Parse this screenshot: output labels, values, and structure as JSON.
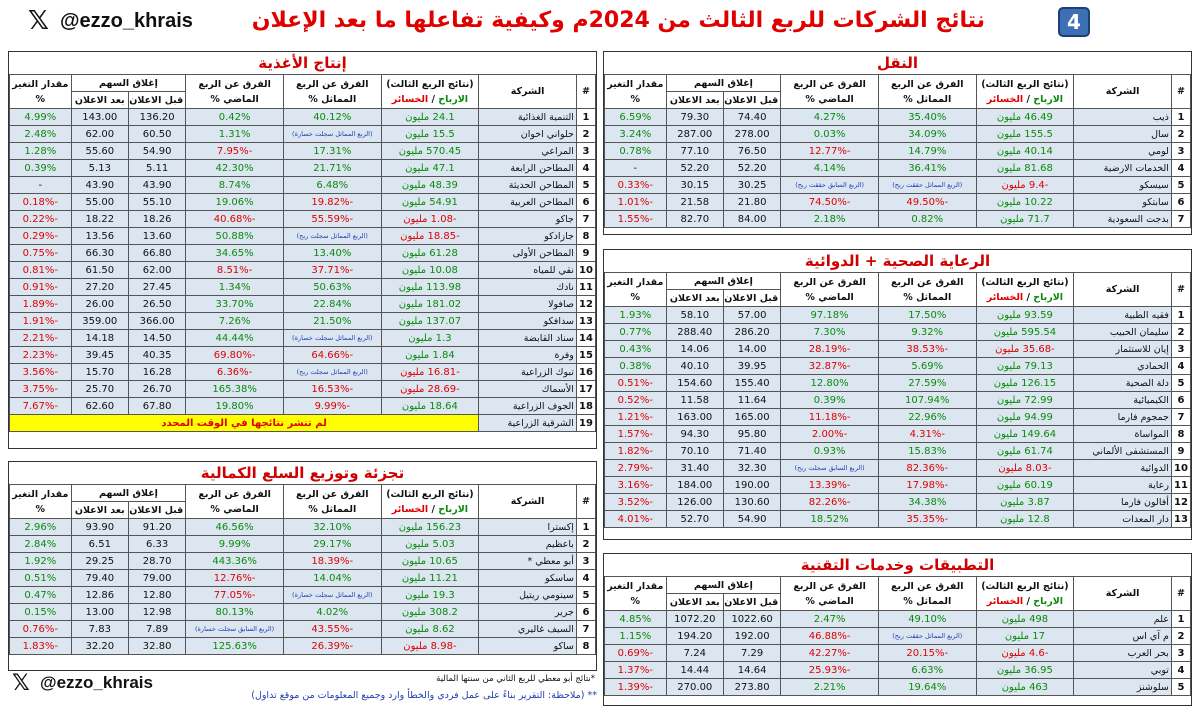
{
  "header": {
    "title": "نتائج الشركات للربع الثالث من 2024م وكيفية تفاعلها ما بعد الإعلان",
    "badge": "4",
    "handle": "@ezzo_khrais",
    "x_logo": "𝕏"
  },
  "columns": {
    "num": "#",
    "company": "الشركة",
    "q3_line1": "(نتائج الربع الثالث)",
    "q3_profit": "الارباح",
    "q3_sep": " / ",
    "q3_loss": "الخسائر",
    "diff_same": "الفرق عن الربع المماثل %",
    "diff_prev": "الفرق عن الربع الماضي %",
    "close_top": "إغلاق السهم",
    "close_before": "قبل الاعلان",
    "close_after": "بعد الاعلان",
    "change": "مقدار التغير %"
  },
  "food": {
    "title": "إنتاج الأغذية",
    "rows": [
      {
        "n": "1",
        "c": "التنمية الغذائية",
        "q": "24.1 مليون",
        "qc": "g",
        "s": "40.12%",
        "sc": "g",
        "p": "0.42%",
        "pc": "g",
        "bf": "136.20",
        "af": "143.00",
        "ch": "4.99%",
        "cc": "g"
      },
      {
        "n": "2",
        "c": "حلواني اخوان",
        "q": "15.5 مليون",
        "qc": "g",
        "s": "(الربع المماثل سجلت خسارة)",
        "sc": "sm",
        "p": "1.31%",
        "pc": "g",
        "bf": "60.50",
        "af": "62.00",
        "ch": "2.48%",
        "cc": "g"
      },
      {
        "n": "3",
        "c": "المراعي",
        "q": "570.45 مليون",
        "qc": "g",
        "s": "17.31%",
        "sc": "g",
        "p": "-7.95%",
        "pc": "r",
        "bf": "54.90",
        "af": "55.60",
        "ch": "1.28%",
        "cc": "g"
      },
      {
        "n": "4",
        "c": "المطاحن الرابعة",
        "q": "47.1 مليون",
        "qc": "g",
        "s": "21.71%",
        "sc": "g",
        "p": "42.30%",
        "pc": "g",
        "bf": "5.11",
        "af": "5.13",
        "ch": "0.39%",
        "cc": "g"
      },
      {
        "n": "5",
        "c": "المطاحن الحديثة",
        "q": "48.39 مليون",
        "qc": "g",
        "s": "6.48%",
        "sc": "g",
        "p": "8.74%",
        "pc": "g",
        "bf": "43.90",
        "af": "43.90",
        "ch": "-",
        "cc": "b"
      },
      {
        "n": "6",
        "c": "المطاحن العربية",
        "q": "54.91 مليون",
        "qc": "g",
        "s": "-19.82%",
        "sc": "r",
        "p": "19.06%",
        "pc": "g",
        "bf": "55.10",
        "af": "55.00",
        "ch": "-0.18%",
        "cc": "r"
      },
      {
        "n": "7",
        "c": "جاكو",
        "q": "-1.08 مليون",
        "qc": "r",
        "s": "-55.59%",
        "sc": "r",
        "p": "-40.68%",
        "pc": "r",
        "bf": "18.26",
        "af": "18.22",
        "ch": "-0.22%",
        "cc": "r"
      },
      {
        "n": "8",
        "c": "جازادكو",
        "q": "-18.85 مليون",
        "qc": "r",
        "s": "(الربع المماثل سجلت ربح)",
        "sc": "sm",
        "p": "50.88%",
        "pc": "g",
        "bf": "13.60",
        "af": "13.56",
        "ch": "-0.29%",
        "cc": "r"
      },
      {
        "n": "9",
        "c": "المطاحن الأولى",
        "q": "61.28 مليون",
        "qc": "g",
        "s": "13.40%",
        "sc": "g",
        "p": "34.65%",
        "pc": "g",
        "bf": "66.80",
        "af": "66.30",
        "ch": "-0.75%",
        "cc": "r"
      },
      {
        "n": "10",
        "c": "نقي للمياه",
        "q": "10.08 مليون",
        "qc": "g",
        "s": "-37.71%",
        "sc": "r",
        "p": "-8.51%",
        "pc": "r",
        "bf": "62.00",
        "af": "61.50",
        "ch": "-0.81%",
        "cc": "r"
      },
      {
        "n": "11",
        "c": "نادك",
        "q": "113.98 مليون",
        "qc": "g",
        "s": "50.63%",
        "sc": "g",
        "p": "1.34%",
        "pc": "g",
        "bf": "27.45",
        "af": "27.20",
        "ch": "-0.91%",
        "cc": "r"
      },
      {
        "n": "12",
        "c": "صافولا",
        "q": "181.02 مليون",
        "qc": "g",
        "s": "22.84%",
        "sc": "g",
        "p": "33.70%",
        "pc": "g",
        "bf": "26.50",
        "af": "26.00",
        "ch": "-1.89%",
        "cc": "r"
      },
      {
        "n": "13",
        "c": "سدافكو",
        "q": "137.07 مليون",
        "qc": "g",
        "s": "21.50%",
        "sc": "g",
        "p": "7.26%",
        "pc": "g",
        "bf": "366.00",
        "af": "359.00",
        "ch": "-1.91%",
        "cc": "r"
      },
      {
        "n": "14",
        "c": "سناد القابضة",
        "q": "1.3 مليون",
        "qc": "g",
        "s": "(الربع المماثل سجلت خسارة)",
        "sc": "sm",
        "p": "44.44%",
        "pc": "g",
        "bf": "14.50",
        "af": "14.18",
        "ch": "-2.21%",
        "cc": "r"
      },
      {
        "n": "15",
        "c": "وفرة",
        "q": "1.84 مليون",
        "qc": "g",
        "s": "-64.66%",
        "sc": "r",
        "p": "-69.80%",
        "pc": "r",
        "bf": "40.35",
        "af": "39.45",
        "ch": "-2.23%",
        "cc": "r"
      },
      {
        "n": "16",
        "c": "تبوك الزراعية",
        "q": "-16.81 مليون",
        "qc": "r",
        "s": "(الربع المماثل سجلت ربح)",
        "sc": "sm",
        "p": "-6.36%",
        "pc": "r",
        "bf": "16.28",
        "af": "15.70",
        "ch": "-3.56%",
        "cc": "r"
      },
      {
        "n": "17",
        "c": "الأسماك",
        "q": "-28.69 مليون",
        "qc": "r",
        "s": "-16.53%",
        "sc": "r",
        "p": "165.38%",
        "pc": "g",
        "bf": "26.70",
        "af": "25.70",
        "ch": "-3.75%",
        "cc": "r"
      },
      {
        "n": "18",
        "c": "الجوف الزراعية",
        "q": "18.64 مليون",
        "qc": "g",
        "s": "-9.99%",
        "sc": "r",
        "p": "19.80%",
        "pc": "g",
        "bf": "67.80",
        "af": "62.60",
        "ch": "-7.67%",
        "cc": "r"
      }
    ],
    "last": {
      "n": "19",
      "c": "الشرقية الزراعية",
      "note": "لم تنشر نتائجها في الوقت المحدد"
    }
  },
  "retail": {
    "title": "تجزئة وتوزيع السلع الكمالية",
    "rows": [
      {
        "n": "1",
        "c": "إكسترا",
        "q": "156.23 مليون",
        "qc": "g",
        "s": "32.10%",
        "sc": "g",
        "p": "46.56%",
        "pc": "g",
        "bf": "91.20",
        "af": "93.90",
        "ch": "2.96%",
        "cc": "g"
      },
      {
        "n": "2",
        "c": "باعظيم",
        "q": "5.03 مليون",
        "qc": "g",
        "s": "29.17%",
        "sc": "g",
        "p": "9.99%",
        "pc": "g",
        "bf": "6.33",
        "af": "6.51",
        "ch": "2.84%",
        "cc": "g"
      },
      {
        "n": "3",
        "c": "أبو معطي *",
        "q": "10.65 مليون",
        "qc": "g",
        "s": "-18.39%",
        "sc": "r",
        "p": "443.36%",
        "pc": "g",
        "bf": "28.70",
        "af": "29.25",
        "ch": "1.92%",
        "cc": "g"
      },
      {
        "n": "4",
        "c": "ساسكو",
        "q": "11.21 مليون",
        "qc": "g",
        "s": "14.04%",
        "sc": "g",
        "p": "-12.76%",
        "pc": "r",
        "bf": "79.00",
        "af": "79.40",
        "ch": "0.51%",
        "cc": "g"
      },
      {
        "n": "5",
        "c": "سينومي ريتيل",
        "q": "19.3 مليون",
        "qc": "g",
        "s": "(الربع المماثل سجلت خسارة)",
        "sc": "sm",
        "p": "-77.05%",
        "pc": "r",
        "bf": "12.80",
        "af": "12.86",
        "ch": "0.47%",
        "cc": "g"
      },
      {
        "n": "6",
        "c": "جرير",
        "q": "308.2 مليون",
        "qc": "g",
        "s": "4.02%",
        "sc": "g",
        "p": "80.13%",
        "pc": "g",
        "bf": "12.98",
        "af": "13.00",
        "ch": "0.15%",
        "cc": "g"
      },
      {
        "n": "7",
        "c": "السيف غاليري",
        "q": "8.62 مليون",
        "qc": "g",
        "s": "-43.55%",
        "sc": "r",
        "p": "(الربع السابق سجلت خسارة)",
        "pc": "sm",
        "bf": "7.89",
        "af": "7.83",
        "ch": "-0.76%",
        "cc": "r"
      },
      {
        "n": "8",
        "c": "ساكو",
        "q": "-8.98 مليون",
        "qc": "r",
        "s": "-26.39%",
        "sc": "r",
        "p": "125.63%",
        "pc": "g",
        "bf": "32.80",
        "af": "32.20",
        "ch": "-1.83%",
        "cc": "r"
      }
    ]
  },
  "transport": {
    "title": "النقل",
    "rows": [
      {
        "n": "1",
        "c": "ذيب",
        "q": "46.49 مليون",
        "qc": "g",
        "s": "35.40%",
        "sc": "g",
        "p": "4.27%",
        "pc": "g",
        "bf": "74.40",
        "af": "79.30",
        "ch": "6.59%",
        "cc": "g"
      },
      {
        "n": "2",
        "c": "سال",
        "q": "155.5 مليون",
        "qc": "g",
        "s": "34.09%",
        "sc": "g",
        "p": "0.03%",
        "pc": "g",
        "bf": "278.00",
        "af": "287.00",
        "ch": "3.24%",
        "cc": "g"
      },
      {
        "n": "3",
        "c": "لومي",
        "q": "40.14 مليون",
        "qc": "g",
        "s": "14.79%",
        "sc": "g",
        "p": "-12.77%",
        "pc": "r",
        "bf": "76.50",
        "af": "77.10",
        "ch": "0.78%",
        "cc": "g"
      },
      {
        "n": "4",
        "c": "الخدمات الارضية",
        "q": "81.68 مليون",
        "qc": "g",
        "s": "36.41%",
        "sc": "g",
        "p": "4.14%",
        "pc": "g",
        "bf": "52.20",
        "af": "52.20",
        "ch": "-",
        "cc": "b"
      },
      {
        "n": "5",
        "c": "سيسكو",
        "q": "-9.4 مليون",
        "qc": "r",
        "s": "(الربع المماثل حققت ربح)",
        "sc": "sm",
        "p": "(الربع السابق حققت ربح)",
        "pc": "sm",
        "bf": "30.25",
        "af": "30.15",
        "ch": "-0.33%",
        "cc": "r"
      },
      {
        "n": "6",
        "c": "سابتكو",
        "q": "10.22 مليون",
        "qc": "g",
        "s": "-49.50%",
        "sc": "r",
        "p": "-74.50%",
        "pc": "r",
        "bf": "21.80",
        "af": "21.58",
        "ch": "-1.01%",
        "cc": "r"
      },
      {
        "n": "7",
        "c": "بدجت السعودية",
        "q": "71.7 مليون",
        "qc": "g",
        "s": "0.82%",
        "sc": "g",
        "p": "2.18%",
        "pc": "g",
        "bf": "84.00",
        "af": "82.70",
        "ch": "-1.55%",
        "cc": "r"
      }
    ]
  },
  "health": {
    "title": "الرعاية الصحية + الدوائية",
    "rows": [
      {
        "n": "1",
        "c": "فقيه الطبية",
        "q": "93.59 مليون",
        "qc": "g",
        "s": "17.50%",
        "sc": "g",
        "p": "97.18%",
        "pc": "g",
        "bf": "57.00",
        "af": "58.10",
        "ch": "1.93%",
        "cc": "g"
      },
      {
        "n": "2",
        "c": "سليمان الحبيب",
        "q": "595.54 مليون",
        "qc": "g",
        "s": "9.32%",
        "sc": "g",
        "p": "7.30%",
        "pc": "g",
        "bf": "286.20",
        "af": "288.40",
        "ch": "0.77%",
        "cc": "g"
      },
      {
        "n": "3",
        "c": "إيان للاستثمار",
        "q": "-35.68 مليون",
        "qc": "r",
        "s": "-38.53%",
        "sc": "r",
        "p": "-28.19%",
        "pc": "r",
        "bf": "14.00",
        "af": "14.06",
        "ch": "0.43%",
        "cc": "g"
      },
      {
        "n": "4",
        "c": "الحمادي",
        "q": "79.13 مليون",
        "qc": "g",
        "s": "5.69%",
        "sc": "g",
        "p": "-32.87%",
        "pc": "r",
        "bf": "39.95",
        "af": "40.10",
        "ch": "0.38%",
        "cc": "g"
      },
      {
        "n": "5",
        "c": "دلة الصحية",
        "q": "126.15 مليون",
        "qc": "g",
        "s": "27.59%",
        "sc": "g",
        "p": "12.80%",
        "pc": "g",
        "bf": "155.40",
        "af": "154.60",
        "ch": "-0.51%",
        "cc": "r"
      },
      {
        "n": "6",
        "c": "الكيميائية",
        "q": "72.99 مليون",
        "qc": "g",
        "s": "107.94%",
        "sc": "g",
        "p": "0.39%",
        "pc": "g",
        "bf": "11.64",
        "af": "11.58",
        "ch": "-0.52%",
        "cc": "r"
      },
      {
        "n": "7",
        "c": "جمجوم فارما",
        "q": "94.99 مليون",
        "qc": "g",
        "s": "22.96%",
        "sc": "g",
        "p": "-11.18%",
        "pc": "r",
        "bf": "165.00",
        "af": "163.00",
        "ch": "-1.21%",
        "cc": "r"
      },
      {
        "n": "8",
        "c": "المواساة",
        "q": "149.64 مليون",
        "qc": "g",
        "s": "-4.31%",
        "sc": "r",
        "p": "-2.00%",
        "pc": "r",
        "bf": "95.80",
        "af": "94.30",
        "ch": "-1.57%",
        "cc": "r"
      },
      {
        "n": "9",
        "c": "المستشفى الألماني",
        "q": "61.74 مليون",
        "qc": "g",
        "s": "15.83%",
        "sc": "g",
        "p": "0.93%",
        "pc": "g",
        "bf": "71.40",
        "af": "70.10",
        "ch": "-1.82%",
        "cc": "r"
      },
      {
        "n": "10",
        "c": "الدوائية",
        "q": "-8.03 مليون",
        "qc": "r",
        "s": "-82.36%",
        "sc": "r",
        "p": "(الربع السابق سجلت ربح)",
        "pc": "sm",
        "bf": "32.30",
        "af": "31.40",
        "ch": "-2.79%",
        "cc": "r"
      },
      {
        "n": "11",
        "c": "رعاية",
        "q": "60.19 مليون",
        "qc": "g",
        "s": "-17.98%",
        "sc": "r",
        "p": "-13.39%",
        "pc": "r",
        "bf": "190.00",
        "af": "184.00",
        "ch": "-3.16%",
        "cc": "r"
      },
      {
        "n": "12",
        "c": "أفالون فارما",
        "q": "3.87 مليون",
        "qc": "g",
        "s": "34.38%",
        "sc": "g",
        "p": "-82.26%",
        "pc": "r",
        "bf": "130.60",
        "af": "126.00",
        "ch": "-3.52%",
        "cc": "r"
      },
      {
        "n": "13",
        "c": "دار المعدات",
        "q": "12.8 مليون",
        "qc": "g",
        "s": "-35.35%",
        "sc": "r",
        "p": "18.52%",
        "pc": "g",
        "bf": "54.90",
        "af": "52.70",
        "ch": "-4.01%",
        "cc": "r"
      }
    ]
  },
  "tech": {
    "title": "التطبيقات وخدمات التقنية",
    "rows": [
      {
        "n": "1",
        "c": "علم",
        "q": "498 مليون",
        "qc": "g",
        "s": "49.10%",
        "sc": "g",
        "p": "2.47%",
        "pc": "g",
        "bf": "1022.60",
        "af": "1072.20",
        "ch": "4.85%",
        "cc": "g"
      },
      {
        "n": "2",
        "c": "م آي اس",
        "q": "17 مليون",
        "qc": "g",
        "s": "(الربع المماثل حققت ربح)",
        "sc": "sm",
        "p": "-46.88%",
        "pc": "r",
        "bf": "192.00",
        "af": "194.20",
        "ch": "1.15%",
        "cc": "g"
      },
      {
        "n": "3",
        "c": "بحر العرب",
        "q": "-4.6 مليون",
        "qc": "r",
        "s": "-20.15%",
        "sc": "r",
        "p": "-42.27%",
        "pc": "r",
        "bf": "7.29",
        "af": "7.24",
        "ch": "-0.69%",
        "cc": "r"
      },
      {
        "n": "4",
        "c": "توبي",
        "q": "36.95 مليون",
        "qc": "g",
        "s": "6.63%",
        "sc": "g",
        "p": "-25.93%",
        "pc": "r",
        "bf": "14.64",
        "af": "14.44",
        "ch": "-1.37%",
        "cc": "r"
      },
      {
        "n": "5",
        "c": "سلوشنز",
        "q": "463 مليون",
        "qc": "g",
        "s": "19.64%",
        "sc": "g",
        "p": "2.21%",
        "pc": "g",
        "bf": "273.80",
        "af": "270.00",
        "ch": "-1.39%",
        "cc": "r"
      }
    ]
  },
  "footnotes": {
    "star": "*نتائج أبو معطي للربع الثاني من سنتها المالية",
    "note": "** (ملاحظة: التقرير بناءً على عمل فردي والخطأ وارد وجميع المعلومات من موقع تداول)"
  }
}
